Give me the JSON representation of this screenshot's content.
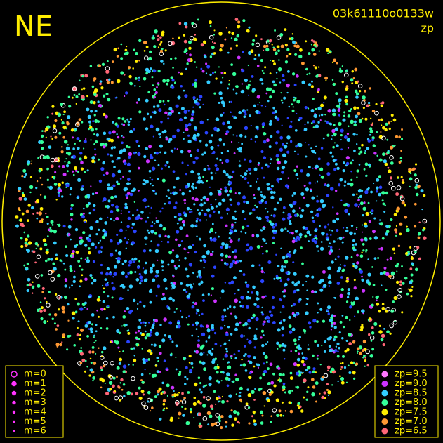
{
  "header": {
    "title": "NE",
    "image_id": "03k61110o0133w",
    "quantity": "zp"
  },
  "magnitude_legend": {
    "color": "#ff33ff",
    "entries": [
      "m=0",
      "m=1",
      "m=2",
      "m=3",
      "m=4",
      "m=5",
      "m=6"
    ]
  },
  "zp_legend": {
    "entries": [
      {
        "label": "zp=9.5",
        "color": "#ff77ff"
      },
      {
        "label": "zp=9.0",
        "color": "#cc33ff"
      },
      {
        "label": "zp=8.5",
        "color": "#33ccff"
      },
      {
        "label": "zp=8.0",
        "color": "#33ff99"
      },
      {
        "label": "zp=7.5",
        "color": "#ffee00"
      },
      {
        "label": "zp=7.0",
        "color": "#ff9933"
      },
      {
        "label": "zp=6.5",
        "color": "#ff6677"
      }
    ]
  }
}
